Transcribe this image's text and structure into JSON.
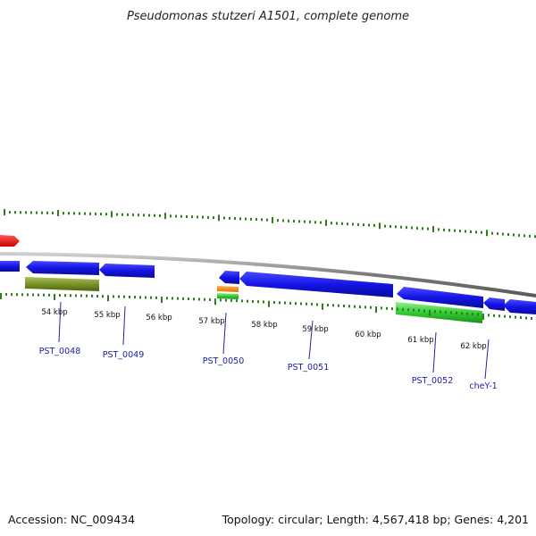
{
  "title": "Pseudomonas stutzeri A1501, complete genome",
  "footer": {
    "accession": "Accession: NC_009434",
    "summary": "Topology: circular; Length: 4,567,418 bp; Genes: 4,201"
  },
  "colors": {
    "backbone": "#8a8a8a",
    "tick": "#2e7d1e",
    "forward_gene": "#1010e0",
    "reverse_gene": "#1010e0",
    "rna_red": "#ee1111",
    "olive_feature": "#6f8a22",
    "green_feature": "#33cc33",
    "orange_feature": "#ff8c00",
    "label_line": "#2222aa",
    "label_text": "#1a1aa6"
  },
  "scale_labels": [
    "54 kbp",
    "55 kbp",
    "56 kbp",
    "57 kbp",
    "58 kbp",
    "59 kbp",
    "60 kbp",
    "61 kbp",
    "62 kbp"
  ],
  "gene_labels": [
    "PST_0048",
    "PST_0049",
    "PST_0050",
    "PST_0051",
    "PST_0052",
    "cheY-1"
  ]
}
